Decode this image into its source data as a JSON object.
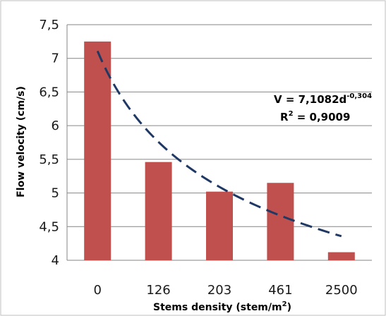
{
  "chart_data": {
    "type": "bar",
    "categories": [
      "0",
      "126",
      "203",
      "461",
      "2500"
    ],
    "values": [
      7.25,
      5.46,
      5.02,
      5.15,
      4.12
    ],
    "ylim": [
      4,
      7.5
    ],
    "yticks": [
      "4",
      "4,5",
      "5",
      "5,5",
      "6",
      "6,5",
      "7",
      "7,5"
    ],
    "ytick_values": [
      4,
      4.5,
      5,
      5.5,
      6,
      6.5,
      7,
      7.5
    ],
    "xlabel_prefix": "Stems density (stem/m",
    "xlabel_sup": "2",
    "xlabel_suffix": ")",
    "ylabel": "Flow velocity (cm/s)",
    "grid": true,
    "bar_color": "#c0504d",
    "trend_color": "#1f3864",
    "trendline": {
      "type": "power",
      "coefficient": 7.1082,
      "exponent": -0.304,
      "equation_prefix": "V = 7,1082d",
      "equation_exp": "-0,304",
      "r2_prefix": "R",
      "r2_sup": "2",
      "r2_suffix": " = 0,9009"
    }
  }
}
